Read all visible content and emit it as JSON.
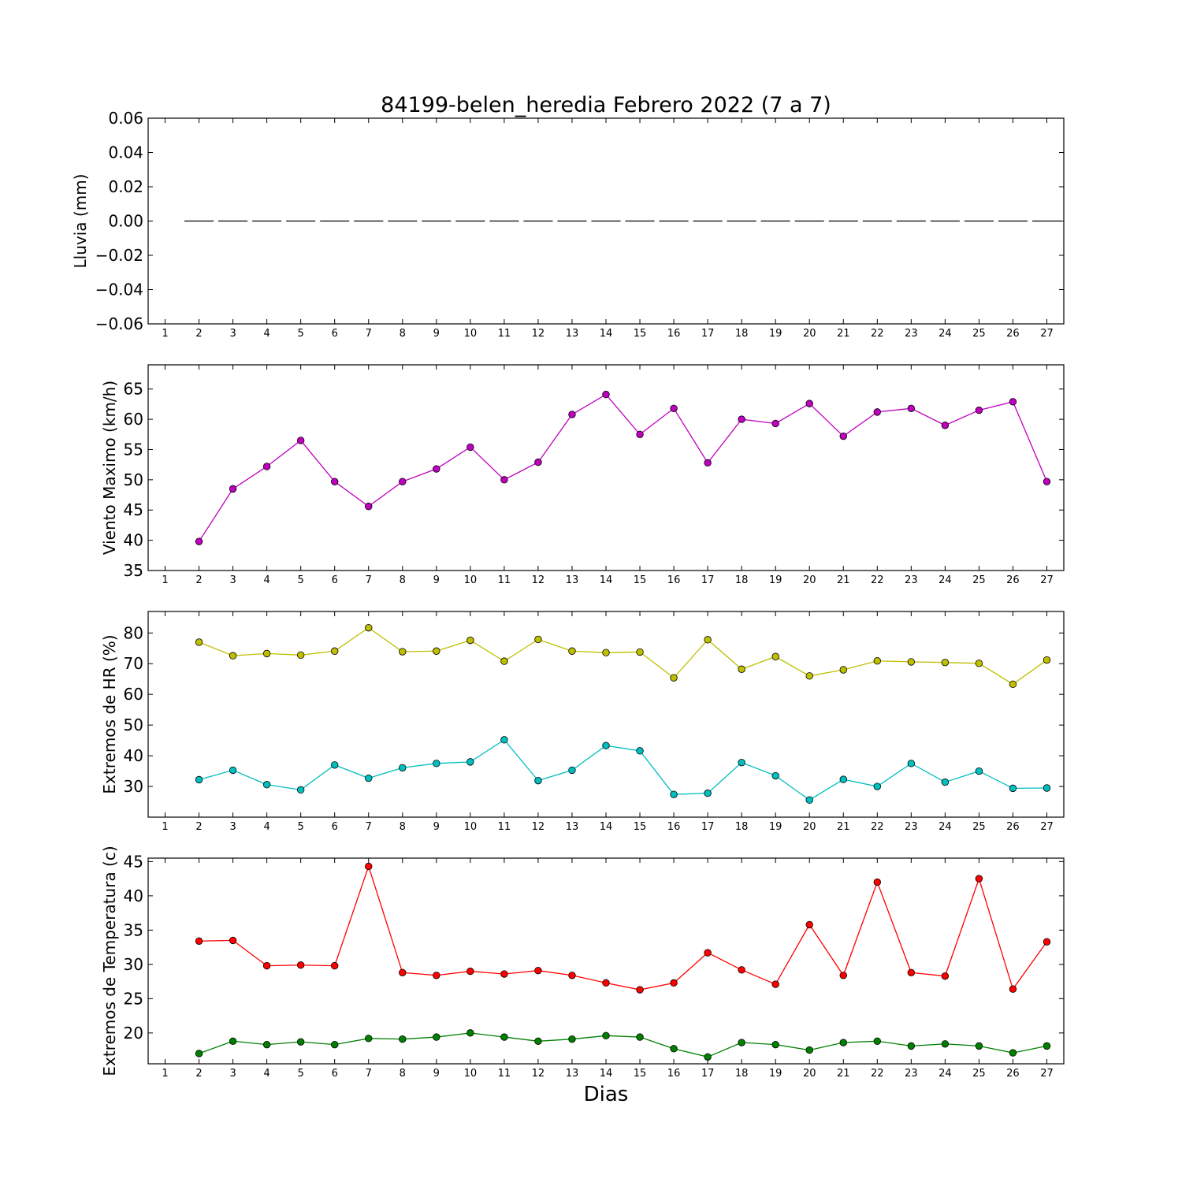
{
  "figure": {
    "title": "84199-belen_heredia Febrero 2022  (7 a 7)",
    "xlabel": "Dias"
  },
  "chart_data": [
    {
      "type": "line",
      "ylabel": "Lluvia (mm)",
      "ylim": [
        -0.06,
        0.06
      ],
      "yticks": [
        -0.06,
        -0.04,
        -0.02,
        0.0,
        0.02,
        0.04,
        0.06
      ],
      "ytick_labels": [
        "−0.06",
        "−0.04",
        "−0.02",
        "0.00",
        "0.02",
        "0.04",
        "0.06"
      ],
      "xlim": [
        0.5,
        27.5
      ],
      "x": [
        1,
        2,
        3,
        4,
        5,
        6,
        7,
        8,
        9,
        10,
        11,
        12,
        13,
        14,
        15,
        16,
        17,
        18,
        19,
        20,
        21,
        22,
        23,
        24,
        25,
        26,
        27
      ],
      "series": [
        {
          "style": "steps",
          "color": "#000000",
          "x": [
            2,
            3,
            4,
            5,
            6,
            7,
            8,
            9,
            10,
            11,
            12,
            13,
            14,
            15,
            16,
            17,
            18,
            19,
            20,
            21,
            22,
            23,
            24,
            25,
            26,
            27
          ],
          "values": [
            0,
            0,
            0,
            0,
            0,
            0,
            0,
            0,
            0,
            0,
            0,
            0,
            0,
            0,
            0,
            0,
            0,
            0,
            0,
            0,
            0,
            0,
            0,
            0,
            0,
            0
          ]
        }
      ]
    },
    {
      "type": "line",
      "ylabel": "Viento Maximo (km/h)",
      "ylim": [
        35,
        69
      ],
      "yticks": [
        35,
        40,
        45,
        50,
        55,
        60,
        65
      ],
      "ytick_labels": [
        "35",
        "40",
        "45",
        "50",
        "55",
        "60",
        "65"
      ],
      "xlim": [
        0.5,
        27.5
      ],
      "x": [
        1,
        2,
        3,
        4,
        5,
        6,
        7,
        8,
        9,
        10,
        11,
        12,
        13,
        14,
        15,
        16,
        17,
        18,
        19,
        20,
        21,
        22,
        23,
        24,
        25,
        26,
        27
      ],
      "series": [
        {
          "color": "#bf00bf",
          "x": [
            2,
            3,
            4,
            5,
            6,
            7,
            8,
            9,
            10,
            11,
            12,
            13,
            14,
            15,
            16,
            17,
            18,
            19,
            20,
            21,
            22,
            23,
            24,
            25,
            26,
            27
          ],
          "values": [
            39.8,
            48.5,
            52.2,
            56.5,
            49.7,
            45.6,
            49.7,
            51.8,
            55.4,
            50.0,
            52.9,
            60.8,
            64.1,
            57.5,
            61.8,
            52.8,
            60.0,
            59.3,
            62.6,
            57.2,
            61.2,
            61.8,
            59.0,
            61.5,
            62.9,
            49.7
          ]
        }
      ]
    },
    {
      "type": "line",
      "ylabel": "Extremos de HR (%)",
      "ylim": [
        20,
        87
      ],
      "yticks": [
        30,
        40,
        50,
        60,
        70,
        80
      ],
      "ytick_labels": [
        "30",
        "40",
        "50",
        "60",
        "70",
        "80"
      ],
      "xlim": [
        0.5,
        27.5
      ],
      "x": [
        1,
        2,
        3,
        4,
        5,
        6,
        7,
        8,
        9,
        10,
        11,
        12,
        13,
        14,
        15,
        16,
        17,
        18,
        19,
        20,
        21,
        22,
        23,
        24,
        25,
        26,
        27
      ],
      "series": [
        {
          "color": "#bfbf00",
          "x": [
            2,
            3,
            4,
            5,
            6,
            7,
            8,
            9,
            10,
            11,
            12,
            13,
            14,
            15,
            16,
            17,
            18,
            19,
            20,
            21,
            22,
            23,
            24,
            25,
            26,
            27
          ],
          "values": [
            77.0,
            72.6,
            73.3,
            72.8,
            74.1,
            81.7,
            73.9,
            74.1,
            77.6,
            70.8,
            77.9,
            74.1,
            73.6,
            73.8,
            65.4,
            77.8,
            68.2,
            72.3,
            66.0,
            68.0,
            70.9,
            70.6,
            70.4,
            70.1,
            63.3,
            71.2
          ]
        },
        {
          "color": "#00bfbf",
          "x": [
            2,
            3,
            4,
            5,
            6,
            7,
            8,
            9,
            10,
            11,
            12,
            13,
            14,
            15,
            16,
            17,
            18,
            19,
            20,
            21,
            22,
            23,
            24,
            25,
            26,
            27
          ],
          "values": [
            32.2,
            35.3,
            30.6,
            28.9,
            37.0,
            32.7,
            36.1,
            37.5,
            38.0,
            45.2,
            31.9,
            35.3,
            43.3,
            41.6,
            27.4,
            27.8,
            37.8,
            33.5,
            25.6,
            32.3,
            30.0,
            37.5,
            31.4,
            35.0,
            29.4,
            29.5
          ]
        }
      ]
    },
    {
      "type": "line",
      "ylabel": "Extremos de Temperatura (c)",
      "ylim": [
        15.5,
        45.5
      ],
      "yticks": [
        20,
        25,
        30,
        35,
        40,
        45
      ],
      "ytick_labels": [
        "20",
        "25",
        "30",
        "35",
        "40",
        "45"
      ],
      "xlim": [
        0.5,
        27.5
      ],
      "x": [
        1,
        2,
        3,
        4,
        5,
        6,
        7,
        8,
        9,
        10,
        11,
        12,
        13,
        14,
        15,
        16,
        17,
        18,
        19,
        20,
        21,
        22,
        23,
        24,
        25,
        26,
        27
      ],
      "series": [
        {
          "color": "#ff0000",
          "x": [
            2,
            3,
            4,
            5,
            6,
            7,
            8,
            9,
            10,
            11,
            12,
            13,
            14,
            15,
            16,
            17,
            18,
            19,
            20,
            21,
            22,
            23,
            24,
            25,
            26,
            27
          ],
          "values": [
            33.4,
            33.5,
            29.8,
            29.9,
            29.8,
            44.3,
            28.8,
            28.4,
            29.0,
            28.6,
            29.1,
            28.4,
            27.3,
            26.3,
            27.3,
            31.7,
            29.2,
            27.1,
            35.8,
            28.4,
            42.0,
            28.8,
            28.3,
            42.5,
            26.4,
            33.3
          ]
        },
        {
          "color": "#008000",
          "x": [
            2,
            3,
            4,
            5,
            6,
            7,
            8,
            9,
            10,
            11,
            12,
            13,
            14,
            15,
            16,
            17,
            18,
            19,
            20,
            21,
            22,
            23,
            24,
            25,
            26,
            27
          ],
          "values": [
            17.0,
            18.8,
            18.3,
            18.7,
            18.3,
            19.2,
            19.1,
            19.4,
            20.0,
            19.4,
            18.8,
            19.1,
            19.6,
            19.4,
            17.7,
            16.5,
            18.6,
            18.3,
            17.5,
            18.6,
            18.8,
            18.1,
            18.4,
            18.1,
            17.1,
            18.1
          ]
        }
      ]
    }
  ]
}
